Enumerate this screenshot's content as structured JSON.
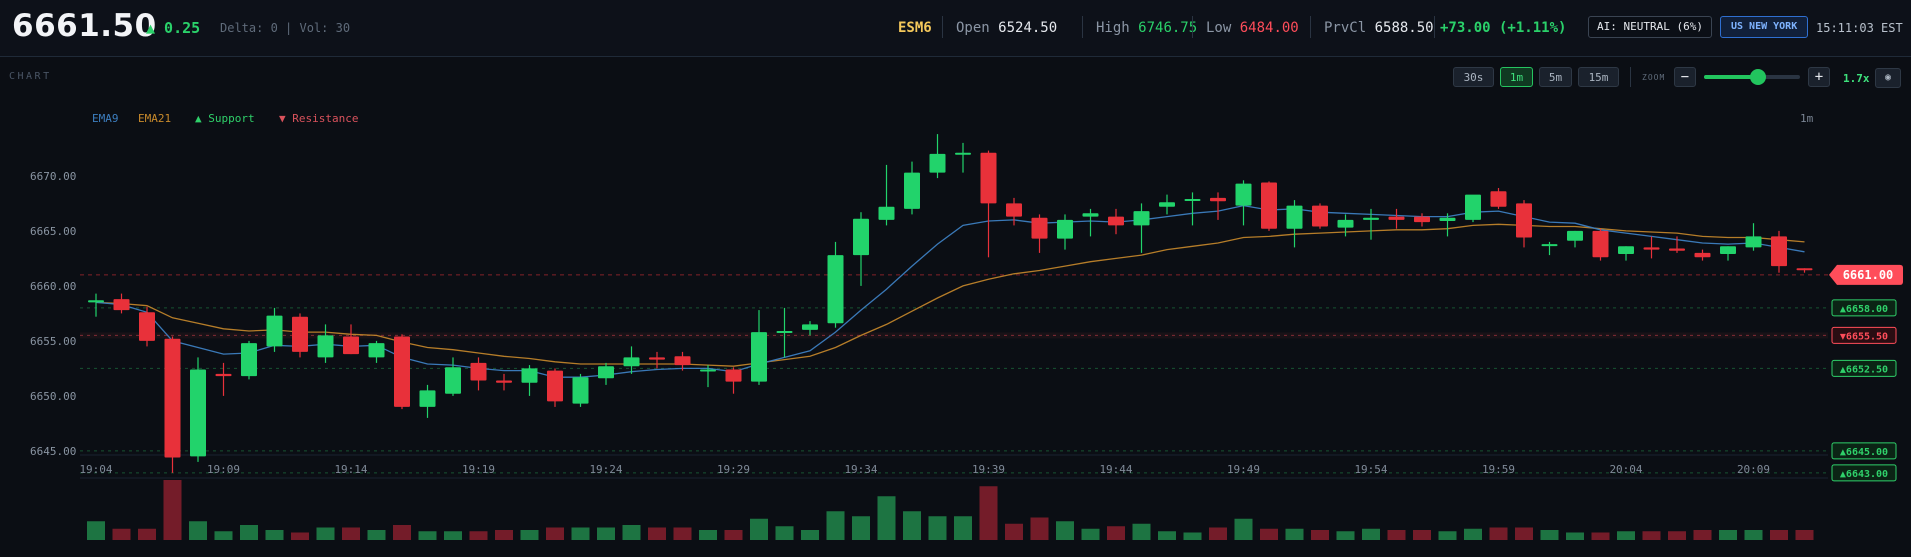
{
  "header": {
    "price": "6661.50",
    "change": "▲ 0.25",
    "delta_text": "Delta: 0 | Vol: 30",
    "symbol": "ESM6",
    "open_label": "Open",
    "open": "6524.50",
    "high_label": "High",
    "high": "6746.75",
    "low_label": "Low",
    "low": "6484.00",
    "prevclose_label": "PrvCl",
    "prevclose": "6588.50",
    "daychange": "+73.00 (+1.11%)",
    "ai_badge": "AI: NEUTRAL (6%)",
    "session_badge": "US NEW YORK",
    "clock": "15:11:03 EST"
  },
  "toolbar": {
    "chart_label": "CHART",
    "timeframes": [
      "30s",
      "1m",
      "5m",
      "15m"
    ],
    "active_timeframe": "1m",
    "zoom_label": "ZOOM",
    "zoom_minus": "−",
    "zoom_plus": "+",
    "zoom_value": "1.7x",
    "zoom_level_fraction": 0.54,
    "camera_icon": "camera-icon"
  },
  "legend": {
    "ema9": "EMA9",
    "ema21": "EMA21",
    "support": "▲ Support",
    "resistance": "▼ Resistance",
    "timeframe": "1m"
  },
  "colors": {
    "up": "#22d36b",
    "down": "#e8313a",
    "ema9": "#3d7fc1",
    "ema21": "#c98a2b",
    "support": "#2fd06a",
    "resistance": "#ff4d5a"
  },
  "chart_data": {
    "type": "candlestick",
    "ylim": [
      6642.9,
      6674.9
    ],
    "y_ticks": [
      "6670.00",
      "6665.00",
      "6660.00",
      "6655.00",
      "6650.00",
      "6645.00"
    ],
    "y_tick_values": [
      6670,
      6665,
      6660,
      6655,
      6650,
      6645
    ],
    "x_tick_labels": [
      "19:04",
      "19:09",
      "19:14",
      "19:19",
      "19:24",
      "19:29",
      "19:34",
      "19:39",
      "19:44",
      "19:49",
      "19:54",
      "19:59",
      "20:04",
      "20:09"
    ],
    "x_tick_indices": [
      0,
      5,
      10,
      15,
      20,
      25,
      30,
      35,
      40,
      45,
      50,
      55,
      60,
      65
    ],
    "candles": [
      {
        "o": 6658.5,
        "h": 6659.3,
        "l": 6657.2,
        "c": 6658.7
      },
      {
        "o": 6658.8,
        "h": 6659.3,
        "l": 6657.5,
        "c": 6657.8
      },
      {
        "o": 6657.6,
        "h": 6658.1,
        "l": 6654.5,
        "c": 6655.0
      },
      {
        "o": 6655.2,
        "h": 6655.4,
        "l": 6643.0,
        "c": 6644.4
      },
      {
        "o": 6644.5,
        "h": 6653.5,
        "l": 6644.0,
        "c": 6652.4
      },
      {
        "o": 6652.0,
        "h": 6653.0,
        "l": 6650.0,
        "c": 6651.8
      },
      {
        "o": 6651.8,
        "h": 6655.0,
        "l": 6651.5,
        "c": 6654.8
      },
      {
        "o": 6654.5,
        "h": 6658.0,
        "l": 6654.0,
        "c": 6657.3
      },
      {
        "o": 6657.2,
        "h": 6657.5,
        "l": 6653.5,
        "c": 6654.0
      },
      {
        "o": 6653.5,
        "h": 6656.5,
        "l": 6653.0,
        "c": 6655.5
      },
      {
        "o": 6655.4,
        "h": 6656.5,
        "l": 6653.8,
        "c": 6653.8
      },
      {
        "o": 6653.5,
        "h": 6655.0,
        "l": 6653.0,
        "c": 6654.8
      },
      {
        "o": 6655.4,
        "h": 6655.6,
        "l": 6648.8,
        "c": 6649.0
      },
      {
        "o": 6649.0,
        "h": 6651.0,
        "l": 6648.0,
        "c": 6650.5
      },
      {
        "o": 6650.2,
        "h": 6653.5,
        "l": 6650.0,
        "c": 6652.6
      },
      {
        "o": 6653.0,
        "h": 6653.5,
        "l": 6650.5,
        "c": 6651.4
      },
      {
        "o": 6651.4,
        "h": 6652.0,
        "l": 6650.5,
        "c": 6651.2
      },
      {
        "o": 6651.2,
        "h": 6652.8,
        "l": 6650.0,
        "c": 6652.5
      },
      {
        "o": 6652.3,
        "h": 6652.5,
        "l": 6649.0,
        "c": 6649.5
      },
      {
        "o": 6649.3,
        "h": 6652.0,
        "l": 6649.0,
        "c": 6651.7
      },
      {
        "o": 6651.6,
        "h": 6653.0,
        "l": 6651.0,
        "c": 6652.7
      },
      {
        "o": 6652.7,
        "h": 6654.5,
        "l": 6652.0,
        "c": 6653.5
      },
      {
        "o": 6653.5,
        "h": 6654.0,
        "l": 6652.5,
        "c": 6653.3
      },
      {
        "o": 6653.6,
        "h": 6654.0,
        "l": 6652.3,
        "c": 6652.8
      },
      {
        "o": 6652.4,
        "h": 6652.8,
        "l": 6650.8,
        "c": 6652.4
      },
      {
        "o": 6652.4,
        "h": 6652.6,
        "l": 6650.2,
        "c": 6651.3
      },
      {
        "o": 6651.3,
        "h": 6657.8,
        "l": 6651.0,
        "c": 6655.8
      },
      {
        "o": 6655.8,
        "h": 6658.0,
        "l": 6653.5,
        "c": 6655.9
      },
      {
        "o": 6656.0,
        "h": 6656.8,
        "l": 6655.5,
        "c": 6656.5
      },
      {
        "o": 6656.6,
        "h": 6664.0,
        "l": 6656.2,
        "c": 6662.8
      },
      {
        "o": 6662.8,
        "h": 6666.7,
        "l": 6660.0,
        "c": 6666.1
      },
      {
        "o": 6666.0,
        "h": 6671.0,
        "l": 6665.5,
        "c": 6667.2
      },
      {
        "o": 6667.0,
        "h": 6671.3,
        "l": 6666.5,
        "c": 6670.3
      },
      {
        "o": 6670.3,
        "h": 6673.8,
        "l": 6669.8,
        "c": 6672.0
      },
      {
        "o": 6672.0,
        "h": 6673.0,
        "l": 6670.3,
        "c": 6672.1
      },
      {
        "o": 6672.1,
        "h": 6672.3,
        "l": 6662.6,
        "c": 6667.5
      },
      {
        "o": 6667.5,
        "h": 6668.0,
        "l": 6665.5,
        "c": 6666.3
      },
      {
        "o": 6666.2,
        "h": 6666.5,
        "l": 6663.0,
        "c": 6664.3
      },
      {
        "o": 6664.3,
        "h": 6666.5,
        "l": 6663.3,
        "c": 6666.0
      },
      {
        "o": 6666.3,
        "h": 6667.0,
        "l": 6664.5,
        "c": 6666.6
      },
      {
        "o": 6666.3,
        "h": 6667.0,
        "l": 6664.7,
        "c": 6665.5
      },
      {
        "o": 6665.5,
        "h": 6667.5,
        "l": 6663.0,
        "c": 6666.8
      },
      {
        "o": 6667.2,
        "h": 6668.3,
        "l": 6666.5,
        "c": 6667.6
      },
      {
        "o": 6667.8,
        "h": 6668.5,
        "l": 6665.5,
        "c": 6667.9
      },
      {
        "o": 6668.0,
        "h": 6668.5,
        "l": 6666.0,
        "c": 6667.7
      },
      {
        "o": 6667.3,
        "h": 6669.6,
        "l": 6665.5,
        "c": 6669.3
      },
      {
        "o": 6669.4,
        "h": 6669.5,
        "l": 6665.0,
        "c": 6665.2
      },
      {
        "o": 6665.2,
        "h": 6667.8,
        "l": 6663.5,
        "c": 6667.3
      },
      {
        "o": 6667.3,
        "h": 6667.5,
        "l": 6665.2,
        "c": 6665.4
      },
      {
        "o": 6665.3,
        "h": 6666.5,
        "l": 6664.5,
        "c": 6666.0
      },
      {
        "o": 6666.0,
        "h": 6667.0,
        "l": 6664.2,
        "c": 6666.2
      },
      {
        "o": 6666.3,
        "h": 6667.0,
        "l": 6665.2,
        "c": 6666.0
      },
      {
        "o": 6666.3,
        "h": 6666.6,
        "l": 6665.4,
        "c": 6665.8
      },
      {
        "o": 6665.9,
        "h": 6666.6,
        "l": 6664.5,
        "c": 6666.2
      },
      {
        "o": 6666.0,
        "h": 6668.0,
        "l": 6665.8,
        "c": 6668.3
      },
      {
        "o": 6668.6,
        "h": 6668.9,
        "l": 6667.0,
        "c": 6667.2
      },
      {
        "o": 6667.5,
        "h": 6667.8,
        "l": 6663.5,
        "c": 6664.4
      },
      {
        "o": 6663.8,
        "h": 6664.0,
        "l": 6662.8,
        "c": 6663.8
      },
      {
        "o": 6664.1,
        "h": 6665.0,
        "l": 6663.5,
        "c": 6665.0
      },
      {
        "o": 6665.0,
        "h": 6665.2,
        "l": 6662.3,
        "c": 6662.6
      },
      {
        "o": 6662.9,
        "h": 6663.6,
        "l": 6662.3,
        "c": 6663.6
      },
      {
        "o": 6663.5,
        "h": 6664.5,
        "l": 6662.5,
        "c": 6663.3
      },
      {
        "o": 6663.4,
        "h": 6664.5,
        "l": 6663.0,
        "c": 6663.2
      },
      {
        "o": 6663.0,
        "h": 6663.3,
        "l": 6662.3,
        "c": 6662.6
      },
      {
        "o": 6662.9,
        "h": 6663.6,
        "l": 6662.3,
        "c": 6663.6
      },
      {
        "o": 6663.5,
        "h": 6665.7,
        "l": 6663.2,
        "c": 6664.5
      },
      {
        "o": 6664.5,
        "h": 6665.0,
        "l": 6661.2,
        "c": 6661.8
      },
      {
        "o": 6661.6,
        "h": 6661.6,
        "l": 6661.2,
        "c": 6661.5
      }
    ],
    "ema9": [
      6658.5,
      6658.3,
      6657.6,
      6655.0,
      6654.4,
      6653.8,
      6653.9,
      6654.6,
      6654.5,
      6654.7,
      6654.5,
      6654.6,
      6653.5,
      6652.9,
      6652.8,
      6652.5,
      6652.3,
      6652.3,
      6651.7,
      6651.7,
      6651.9,
      6652.2,
      6652.4,
      6652.5,
      6652.5,
      6652.2,
      6652.9,
      6653.5,
      6654.1,
      6655.8,
      6657.8,
      6659.7,
      6661.8,
      6663.8,
      6665.5,
      6665.9,
      6666.0,
      6665.7,
      6665.8,
      6665.9,
      6665.8,
      6666.0,
      6666.3,
      6666.6,
      6666.8,
      6667.3,
      6666.9,
      6667.0,
      6666.7,
      6666.6,
      6666.5,
      6666.4,
      6666.3,
      6666.3,
      6666.7,
      6666.8,
      6666.3,
      6665.8,
      6665.7,
      6665.1,
      6664.8,
      6664.5,
      6664.2,
      6663.9,
      6663.8,
      6663.9,
      6663.5,
      6663.1
    ],
    "ema21": [
      6658.5,
      6658.4,
      6658.2,
      6657.1,
      6656.6,
      6656.1,
      6655.9,
      6656.0,
      6655.8,
      6655.8,
      6655.6,
      6655.5,
      6654.9,
      6654.4,
      6654.2,
      6653.9,
      6653.6,
      6653.4,
      6653.1,
      6652.9,
      6652.9,
      6652.9,
      6652.9,
      6652.9,
      6652.8,
      6652.7,
      6653.0,
      6653.3,
      6653.6,
      6654.4,
      6655.5,
      6656.5,
      6657.7,
      6658.9,
      6660.0,
      6660.6,
      6661.1,
      6661.4,
      6661.8,
      6662.2,
      6662.5,
      6662.8,
      6663.3,
      6663.6,
      6663.9,
      6664.4,
      6664.5,
      6664.7,
      6664.8,
      6664.9,
      6665.0,
      6665.1,
      6665.1,
      6665.2,
      6665.5,
      6665.6,
      6665.5,
      6665.4,
      6665.4,
      6665.2,
      6665.0,
      6664.9,
      6664.8,
      6664.5,
      6664.4,
      6664.4,
      6664.2,
      6664.0
    ],
    "levels": [
      {
        "type": "current",
        "value": 6661.0,
        "label": "6661.00"
      },
      {
        "type": "support",
        "value": 6658.0,
        "label": "▲6658.00"
      },
      {
        "type": "resistance",
        "value": 6655.5,
        "label": "▼6655.50"
      },
      {
        "type": "support",
        "value": 6652.5,
        "label": "▲6652.50"
      },
      {
        "type": "support",
        "value": 6645.0,
        "label": "▲6645.00"
      },
      {
        "type": "support",
        "value": 6643.0,
        "label": "▲6643.00"
      }
    ],
    "volume": [
      15,
      9,
      9,
      48,
      15,
      7,
      12,
      8,
      6,
      10,
      10,
      8,
      12,
      7,
      7,
      7,
      8,
      8,
      10,
      10,
      10,
      12,
      10,
      10,
      8,
      8,
      17,
      11,
      8,
      23,
      19,
      35,
      23,
      19,
      19,
      43,
      13,
      18,
      15,
      9,
      11,
      13,
      7,
      6,
      10,
      17,
      9,
      9,
      8,
      7,
      9,
      8,
      8,
      7,
      9,
      10,
      10,
      8,
      6,
      6,
      7,
      7,
      7,
      8,
      8,
      8,
      8,
      8
    ],
    "volume_direction": [
      "up",
      "down",
      "down",
      "down",
      "up",
      "up",
      "up",
      "up",
      "down",
      "up",
      "down",
      "up",
      "down",
      "up",
      "up",
      "down",
      "down",
      "up",
      "down",
      "up",
      "up",
      "up",
      "down",
      "down",
      "up",
      "down",
      "up",
      "up",
      "up",
      "up",
      "up",
      "up",
      "up",
      "up",
      "up",
      "down",
      "down",
      "down",
      "up",
      "up",
      "down",
      "up",
      "up",
      "up",
      "down",
      "up",
      "down",
      "up",
      "down",
      "up",
      "up",
      "down",
      "down",
      "up",
      "up",
      "down",
      "down",
      "up",
      "up",
      "down",
      "up",
      "down",
      "down",
      "down",
      "up",
      "up",
      "down",
      "down"
    ]
  }
}
